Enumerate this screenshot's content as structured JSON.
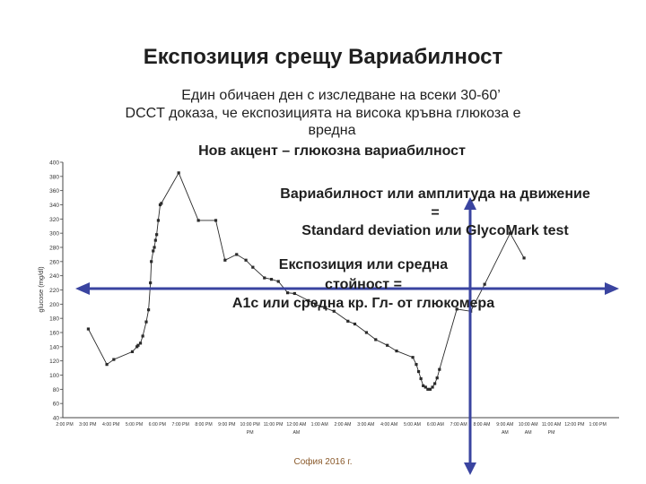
{
  "slide": {
    "title": "Експозиция срещу Вариабилност",
    "subtitle_lines": [
      "Един обичаен ден с изследване на всеки 30-60’",
      "DCCT доказа, че експозицията на висока кръвна глюкоза е",
      "вредна",
      "Нов акцент – глюкозна вариабилност"
    ],
    "variability_note": [
      "Вариабилност или амплитуда на движение",
      "=",
      "Standard deviation или GlycoMark test"
    ],
    "exposure_note": [
      "Експозиция или средна",
      "стойност =",
      "A1c или средна кр. Гл- от глюкомера"
    ],
    "footer": "София 2016 г."
  },
  "colors": {
    "series": "#2a2a2a",
    "arrow": "#3a44a0",
    "axis": "#444444"
  },
  "chart_data": {
    "type": "line",
    "ylabel": "glucose (mg/dl)",
    "ylim": [
      40,
      400
    ],
    "yticks": [
      40,
      60,
      80,
      100,
      120,
      140,
      160,
      180,
      200,
      220,
      240,
      260,
      280,
      300,
      320,
      340,
      360,
      380,
      400
    ],
    "xlim": [
      0,
      24
    ],
    "x_tick_labels": [
      "2:00 PM",
      "3:00 PM",
      "4:00 PM",
      "5:00 PM",
      "6:00 PM",
      "7:00 PM",
      "8:00 PM",
      "9:00 PM",
      "10:00 PM",
      "11:00 PM",
      "12:00 AM",
      "1:00 AM",
      "2:00 AM",
      "3:00 AM",
      "4:00 AM",
      "5:00 AM",
      "6:00 AM",
      "7:00 AM",
      "8:00 AM",
      "9:00 AM",
      "10:00 AM",
      "11:00 AM",
      "12:00 PM",
      "1:00 PM"
    ],
    "x_tick_sublabels": [
      "",
      "",
      "",
      "",
      "",
      "",
      "",
      "",
      "PM",
      "",
      "AM",
      "",
      "",
      "",
      "",
      "",
      "",
      "",
      "",
      "AM",
      "AM",
      "PM",
      "",
      ""
    ],
    "grid": false,
    "series": [
      {
        "x": [
          1.1,
          1.9,
          2.2,
          3.0,
          3.2,
          3.25,
          3.35,
          3.45,
          3.6,
          3.7,
          3.78,
          3.82,
          3.9,
          3.95,
          4.0,
          4.05,
          4.12,
          4.2,
          4.25,
          5.0,
          5.85,
          6.6,
          7.0,
          7.5,
          7.9,
          8.2,
          8.7,
          9.0,
          9.3,
          9.7,
          10.0,
          10.6,
          10.9,
          11.3,
          11.7,
          12.3,
          12.6,
          13.1,
          13.5,
          14.0,
          14.4,
          15.1,
          15.25,
          15.35,
          15.45,
          15.55,
          15.65,
          15.75,
          15.85,
          15.95,
          16.05,
          16.15,
          16.25,
          17.0,
          17.6,
          18.2,
          19.3,
          19.9
        ],
        "y": [
          165,
          115,
          122,
          133,
          140,
          142,
          145,
          155,
          175,
          192,
          230,
          260,
          275,
          280,
          290,
          298,
          318,
          340,
          342,
          385,
          318,
          318,
          262,
          270,
          262,
          252,
          237,
          235,
          232,
          216,
          215,
          205,
          200,
          195,
          190,
          176,
          172,
          160,
          150,
          142,
          134,
          125,
          115,
          105,
          95,
          85,
          83,
          80,
          80,
          83,
          88,
          96,
          108,
          193,
          190,
          228,
          300,
          265
        ]
      }
    ]
  }
}
